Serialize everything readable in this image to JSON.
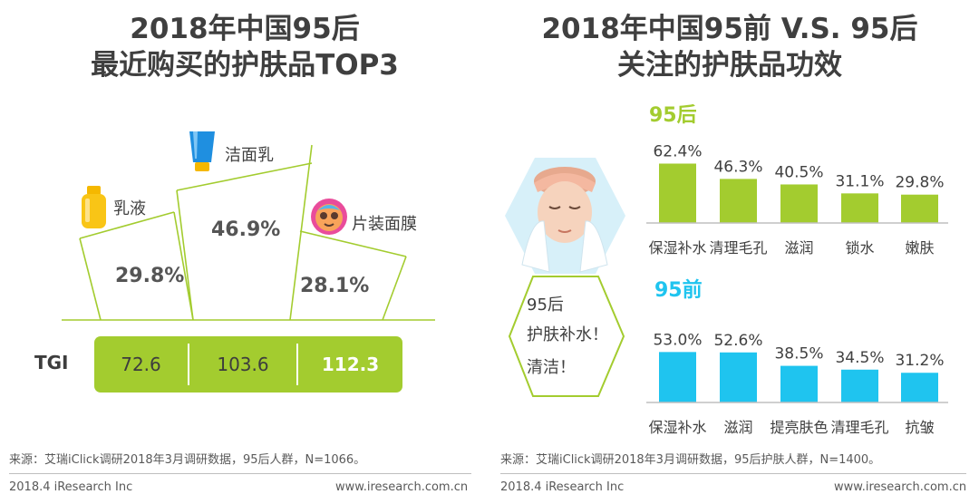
{
  "left_panel": {
    "title_line1": "2018年中国95后",
    "title_line2": "最近购买的护肤品TOP3",
    "products": [
      {
        "name": "乳液",
        "share": "29.8%",
        "tgi": "72.6"
      },
      {
        "name": "洁面乳",
        "share": "46.9%",
        "tgi": "103.6"
      },
      {
        "name": "片装面膜",
        "share": "28.1%",
        "tgi": "112.3"
      }
    ],
    "tgi_label": "TGI",
    "source": "来源：艾瑞iClick调研2018年3月调研数据，95后人群，N=1066。",
    "footer_left": "2018.4 iResearch Inc",
    "footer_right": "www.iresearch.com.cn"
  },
  "right_panel": {
    "title_line1": "2018年中国95前 V.S. 95后",
    "title_line2": "关注的护肤品功效",
    "bubble": {
      "line1": "95后",
      "line2": "护肤补水！",
      "line3": "清洁！"
    },
    "source": "来源：艾瑞iClick调研2018年3月调研数据，95后护肤人群，N=1400。",
    "footer_left": "2018.4 iResearch Inc",
    "footer_right": "www.iresearch.com.cn"
  },
  "colors": {
    "green": "#a3cc2f",
    "blue": "#1fc4ef",
    "title": "#3f3f3f"
  },
  "icons": [
    "lotion-bottle-icon",
    "cleanser-tube-icon",
    "face-mask-icon",
    "face-washing-illustration"
  ],
  "chart_data": [
    {
      "type": "bar",
      "title": "95后",
      "series": [
        {
          "name": "95后",
          "values": [
            62.4,
            46.3,
            40.5,
            31.1,
            29.8
          ]
        }
      ],
      "categories": [
        "保湿补水",
        "清理毛孔",
        "滋润",
        "锁水",
        "嫩肤"
      ],
      "labels": [
        "62.4%",
        "46.3%",
        "40.5%",
        "31.1%",
        "29.8%"
      ],
      "ylim": [
        0,
        100
      ],
      "color": "#a3cc2f"
    },
    {
      "type": "bar",
      "title": "95前",
      "series": [
        {
          "name": "95前",
          "values": [
            53.0,
            52.6,
            38.5,
            34.5,
            31.2
          ]
        }
      ],
      "categories": [
        "保湿补水",
        "滋润",
        "提亮肤色",
        "清理毛孔",
        "抗皱"
      ],
      "labels": [
        "53.0%",
        "52.6%",
        "38.5%",
        "34.5%",
        "31.2%"
      ],
      "ylim": [
        0,
        100
      ],
      "color": "#1fc4ef"
    }
  ]
}
